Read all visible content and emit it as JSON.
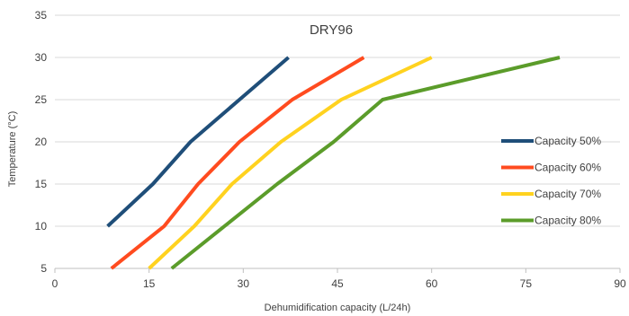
{
  "chart_data": {
    "type": "line",
    "title": "DRY96",
    "xlabel": "Dehumidification capacity (L/24h)",
    "ylabel": "Temperature (°C)",
    "xlim": [
      0,
      90
    ],
    "ylim": [
      5,
      35
    ],
    "xticks": [
      0,
      15,
      30,
      45,
      60,
      75,
      90
    ],
    "yticks": [
      5,
      10,
      15,
      20,
      25,
      30,
      35
    ],
    "grid": "horizontal",
    "legend_position": "right",
    "series": [
      {
        "name": "Capacity 50%",
        "color": "#1f4e79",
        "points": [
          [
            8.4,
            10
          ],
          [
            15.6,
            15
          ],
          [
            21.6,
            20
          ],
          [
            29.4,
            25
          ],
          [
            37.2,
            30
          ]
        ]
      },
      {
        "name": "Capacity 60%",
        "color": "#ff4b1f",
        "points": [
          [
            9.0,
            5
          ],
          [
            17.4,
            10
          ],
          [
            22.8,
            15
          ],
          [
            29.4,
            20
          ],
          [
            37.8,
            25
          ],
          [
            49.2,
            30
          ]
        ]
      },
      {
        "name": "Capacity 70%",
        "color": "#ffd21f",
        "points": [
          [
            15.0,
            5
          ],
          [
            22.2,
            10
          ],
          [
            28.2,
            15
          ],
          [
            36.0,
            20
          ],
          [
            45.6,
            25
          ],
          [
            60.0,
            30
          ]
        ]
      },
      {
        "name": "Capacity 80%",
        "color": "#5b9c2a",
        "points": [
          [
            18.6,
            5
          ],
          [
            27.0,
            10
          ],
          [
            35.4,
            15
          ],
          [
            44.4,
            20
          ],
          [
            52.2,
            25
          ],
          [
            80.4,
            30
          ]
        ]
      }
    ]
  }
}
